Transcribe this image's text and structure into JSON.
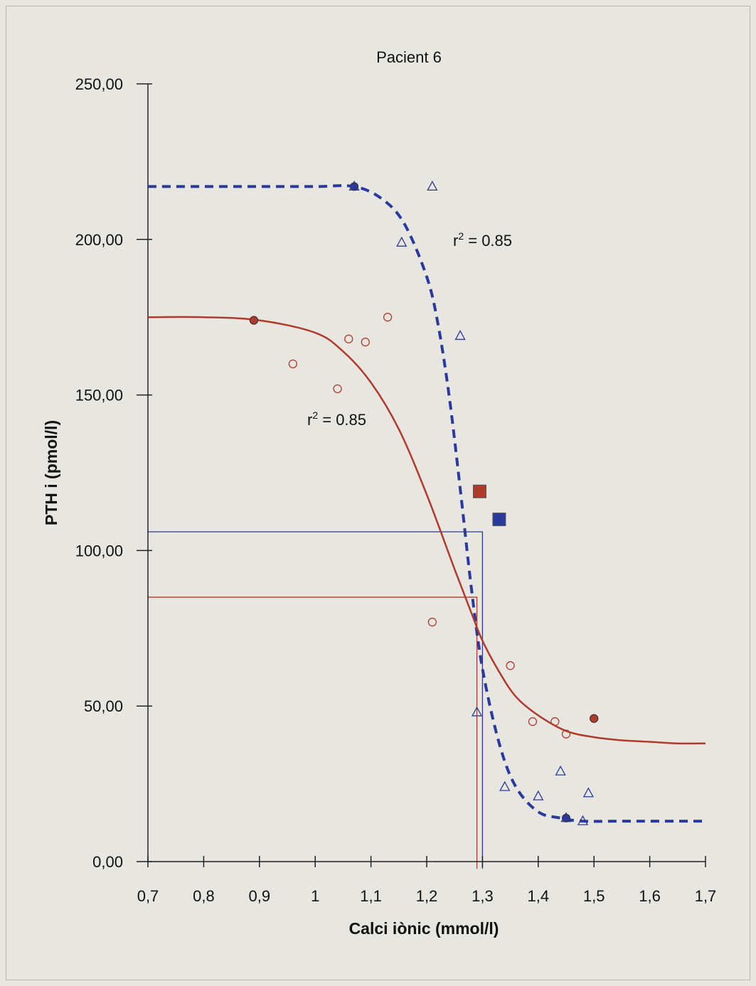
{
  "chart_data": {
    "type": "scatter",
    "title": "Pacient 6",
    "xlabel": "Calci iònic (mmol/l)",
    "ylabel": "PTH i (pmol/l)",
    "xlim": [
      0.7,
      1.7
    ],
    "ylim": [
      0,
      250
    ],
    "xticks": [
      "0,7",
      "0,8",
      "0,9",
      "1",
      "1,1",
      "1,2",
      "1,3",
      "1,4",
      "1,5",
      "1,6",
      "1,7"
    ],
    "yticks": [
      "0,00",
      "50,00",
      "100,00",
      "150,00",
      "200,00",
      "250,00"
    ],
    "grid": false,
    "legend": "none",
    "colors": {
      "red": "#b23a2c",
      "blue": "#2a3a9c"
    },
    "annotations": [
      {
        "text": "r² = 0.85",
        "x": 1.28,
        "y": 199,
        "color": "blue"
      },
      {
        "text": "r² = 0.85",
        "x": 0.98,
        "y": 142,
        "color": "red"
      }
    ],
    "series": [
      {
        "color": "#b23a2c",
        "kind": "sigmoid-fit",
        "curve_x": [
          0.7,
          0.8,
          0.9,
          1.0,
          1.05,
          1.1,
          1.15,
          1.2,
          1.25,
          1.28,
          1.3,
          1.33,
          1.36,
          1.4,
          1.45,
          1.5,
          1.55,
          1.6,
          1.65,
          1.7
        ],
        "curve_y": [
          175,
          175,
          174,
          170,
          164,
          154,
          139,
          118,
          94,
          80,
          71,
          61,
          53,
          47,
          42,
          40,
          39,
          38.5,
          38,
          38
        ],
        "points": [
          {
            "x": 0.89,
            "y": 174
          },
          {
            "x": 0.96,
            "y": 160
          },
          {
            "x": 1.04,
            "y": 152
          },
          {
            "x": 1.06,
            "y": 168
          },
          {
            "x": 1.09,
            "y": 167
          },
          {
            "x": 1.13,
            "y": 175
          },
          {
            "x": 1.21,
            "y": 77
          },
          {
            "x": 1.35,
            "y": 63
          },
          {
            "x": 1.39,
            "y": 45
          },
          {
            "x": 1.43,
            "y": 45
          },
          {
            "x": 1.45,
            "y": 41
          },
          {
            "x": 1.5,
            "y": 46
          }
        ],
        "setpoint": {
          "x": 1.295,
          "y": 119
        },
        "setpoint_guide": {
          "x": 1.29,
          "y": 85
        }
      },
      {
        "color": "#2a3a9c",
        "kind": "sigmoid-fit-dashed",
        "curve_x": [
          0.7,
          0.8,
          0.9,
          1.0,
          1.07,
          1.12,
          1.16,
          1.2,
          1.22,
          1.24,
          1.26,
          1.28,
          1.3,
          1.33,
          1.36,
          1.4,
          1.44,
          1.48,
          1.55,
          1.7
        ],
        "curve_y": [
          217,
          217,
          217,
          217,
          217,
          213,
          205,
          188,
          173,
          150,
          120,
          88,
          62,
          38,
          24,
          16,
          14,
          13,
          13,
          13
        ],
        "points": [
          {
            "x": 1.07,
            "y": 217
          },
          {
            "x": 1.155,
            "y": 199
          },
          {
            "x": 1.21,
            "y": 217
          },
          {
            "x": 1.26,
            "y": 169
          },
          {
            "x": 1.29,
            "y": 48
          },
          {
            "x": 1.34,
            "y": 24
          },
          {
            "x": 1.4,
            "y": 21
          },
          {
            "x": 1.44,
            "y": 29
          },
          {
            "x": 1.45,
            "y": 14
          },
          {
            "x": 1.48,
            "y": 13
          },
          {
            "x": 1.49,
            "y": 22
          }
        ],
        "setpoint": {
          "x": 1.33,
          "y": 110
        },
        "setpoint_guide": {
          "x": 1.3,
          "y": 106
        }
      }
    ]
  }
}
